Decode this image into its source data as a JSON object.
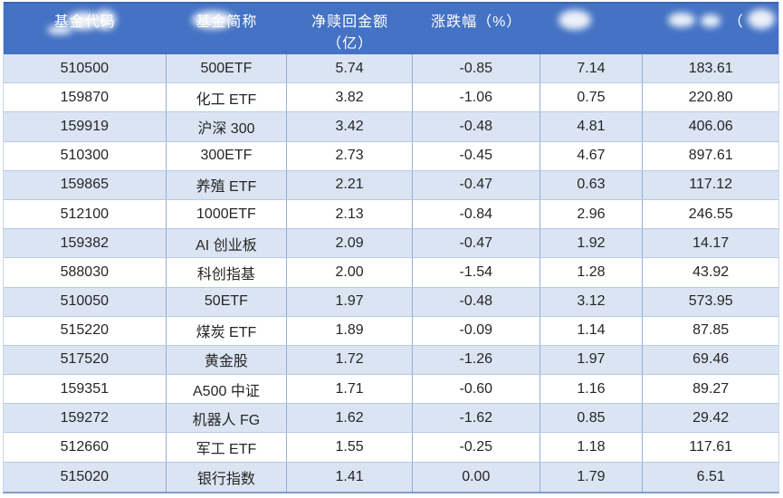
{
  "table": {
    "columns": [
      {
        "key": "code",
        "label": "基金代码",
        "redacted": true,
        "visible_fragment": "基…码"
      },
      {
        "key": "name",
        "label": "基金简称",
        "redacted": true,
        "visible_fragment": "简称"
      },
      {
        "key": "net_redemption",
        "label_lines": [
          "净赎回金额",
          "（亿）"
        ],
        "redacted": false
      },
      {
        "key": "change_pct",
        "label": "涨跌幅（%）",
        "redacted": false
      },
      {
        "key": "col5",
        "label": "",
        "redacted": true,
        "visible_fragment": ""
      },
      {
        "key": "col6",
        "label": "（",
        "redacted": true,
        "visible_fragment": "（"
      }
    ],
    "rows": [
      [
        "510500",
        "500ETF",
        "5.74",
        "-0.85",
        "7.14",
        "183.61"
      ],
      [
        "159870",
        "化工 ETF",
        "3.82",
        "-1.06",
        "0.75",
        "220.80"
      ],
      [
        "159919",
        "沪深 300",
        "3.42",
        "-0.48",
        "4.81",
        "406.06"
      ],
      [
        "510300",
        "300ETF",
        "2.73",
        "-0.45",
        "4.67",
        "897.61"
      ],
      [
        "159865",
        "养殖 ETF",
        "2.21",
        "-0.47",
        "0.63",
        "117.12"
      ],
      [
        "512100",
        "1000ETF",
        "2.13",
        "-0.84",
        "2.96",
        "246.55"
      ],
      [
        "159382",
        "AI 创业板",
        "2.09",
        "-0.47",
        "1.92",
        "14.17"
      ],
      [
        "588030",
        "科创指基",
        "2.00",
        "-1.54",
        "1.28",
        "43.92"
      ],
      [
        "510050",
        "50ETF",
        "1.97",
        "-0.48",
        "3.12",
        "573.95"
      ],
      [
        "515220",
        "煤炭 ETF",
        "1.89",
        "-0.09",
        "1.14",
        "87.85"
      ],
      [
        "517520",
        "黄金股",
        "1.72",
        "-1.26",
        "1.97",
        "69.46"
      ],
      [
        "159351",
        "A500 中证",
        "1.71",
        "-0.60",
        "1.16",
        "89.27"
      ],
      [
        "159272",
        "机器人 FG",
        "1.62",
        "-1.62",
        "0.85",
        "29.42"
      ],
      [
        "512660",
        "军工 ETF",
        "1.55",
        "-0.25",
        "1.18",
        "117.61"
      ],
      [
        "515020",
        "银行指数",
        "1.41",
        "0.00",
        "1.79",
        "6.51"
      ]
    ]
  },
  "colors": {
    "header_bg": "#4472c4",
    "header_text": "#ffffff",
    "banded_row_bg": "#dbe4f2",
    "plain_row_bg": "#ffffff",
    "grid_border": "#93aedb",
    "row_border": "#b7c9e8",
    "bottom_border": "#7e9bd0",
    "body_text": "#262626"
  }
}
